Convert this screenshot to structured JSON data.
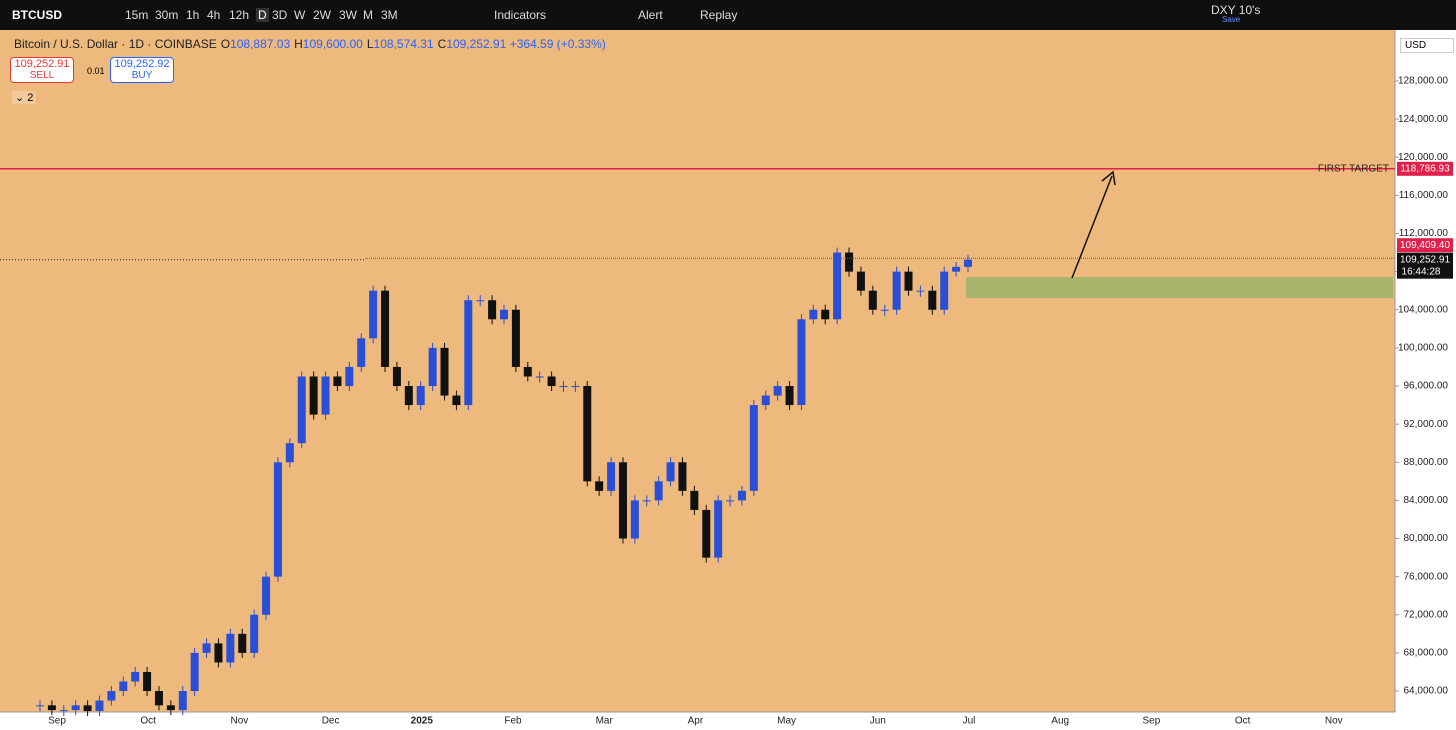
{
  "toolbar": {
    "symbol": "BTCUSD",
    "intervals": [
      "15m",
      "30m",
      "1h",
      "4h",
      "12h",
      "D",
      "3D",
      "W",
      "2W",
      "3W",
      "M",
      "3M"
    ],
    "indicators": "Indicators",
    "alert": "Alert",
    "replay": "Replay",
    "compare": "DXY 10's",
    "save": "Save"
  },
  "header": {
    "title": "Bitcoin / U.S. Dollar · 1D · COINBASE",
    "ohlc": [
      {
        "label": "O",
        "value": "108,887.03"
      },
      {
        "label": "H",
        "value": "109,600.00"
      },
      {
        "label": "L",
        "value": "108,574.31"
      },
      {
        "label": "C",
        "value": "109,252.91"
      }
    ],
    "change": "+364.59 (+0.33%)"
  },
  "trade": {
    "sell_price": "109,252.91",
    "sell": "SELL",
    "spread": "0.01",
    "buy_price": "109,252.92",
    "buy": "BUY",
    "indicators_count": "2"
  },
  "chart_data": {
    "type": "candlestick",
    "currency": "USD",
    "ylim": [
      61800,
      133350
    ],
    "yticks": [
      {
        "value": 64000,
        "label": "64,000.00"
      },
      {
        "value": 68000,
        "label": "68,000.00"
      },
      {
        "value": 72000,
        "label": "72,000.00"
      },
      {
        "value": 76000,
        "label": "76,000.00"
      },
      {
        "value": 80000,
        "label": "80,000.00"
      },
      {
        "value": 84000,
        "label": "84,000.00"
      },
      {
        "value": 88000,
        "label": "88,000.00"
      },
      {
        "value": 92000,
        "label": "92,000.00"
      },
      {
        "value": 96000,
        "label": "96,000.00"
      },
      {
        "value": 100000,
        "label": "100,000.00"
      },
      {
        "value": 104000,
        "label": "104,000.00"
      },
      {
        "value": 108000,
        "label": "108,000.00"
      },
      {
        "value": 112000,
        "label": "112,000.00"
      },
      {
        "value": 116000,
        "label": "116,000.00"
      },
      {
        "value": 120000,
        "label": "120,000.00"
      },
      {
        "value": 124000,
        "label": "124,000.00"
      },
      {
        "value": 128000,
        "label": "128,000.00"
      }
    ],
    "months": [
      "Sep",
      "Oct",
      "Nov",
      "Dec",
      "2025",
      "Feb",
      "Mar",
      "Apr",
      "May",
      "Jun",
      "Jul",
      "Aug",
      "Sep",
      "Oct",
      "Nov"
    ],
    "closes": [
      62500,
      62000,
      62000,
      62500,
      61900,
      63000,
      64000,
      65000,
      66000,
      64000,
      62500,
      62000,
      64000,
      68000,
      69000,
      67000,
      70000,
      68000,
      72000,
      76000,
      88000,
      90000,
      97000,
      93000,
      97000,
      96000,
      98000,
      101000,
      106000,
      98000,
      96000,
      94000,
      96000,
      100000,
      95000,
      94000,
      105000,
      105000,
      103000,
      104000,
      98000,
      97000,
      97000,
      96000,
      96000,
      96000,
      86000,
      85000,
      88000,
      80000,
      84000,
      84000,
      86000,
      88000,
      85000,
      83000,
      78000,
      84000,
      84000,
      85000,
      94000,
      95000,
      96000,
      94000,
      103000,
      104000,
      103000,
      110000,
      108000,
      106000,
      104000,
      104000,
      108000,
      106000,
      106000,
      104000,
      108000,
      108500,
      109252.91
    ],
    "target": {
      "label": "FIRST TARGET",
      "value": 118786.93,
      "value_label": "118,786.93"
    },
    "resistance": {
      "value": 109409.4,
      "value_label": "109,409.40"
    },
    "last": {
      "value": 109252.91,
      "value_label": "109,252.91",
      "countdown": "16:44:28"
    },
    "zone": [
      105233,
      107436
    ]
  }
}
